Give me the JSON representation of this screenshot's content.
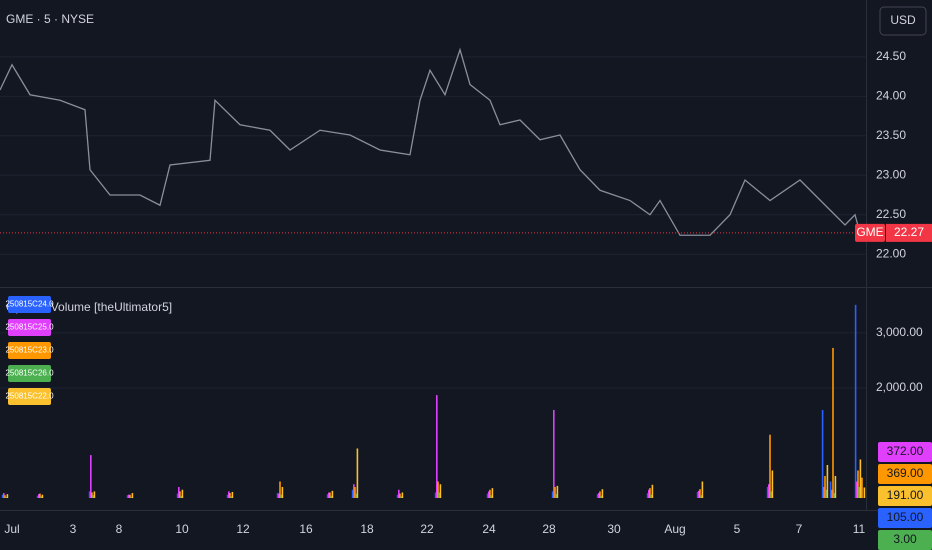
{
  "header": {
    "title": "GME · 5 · NYSE",
    "currency": "USD"
  },
  "chart_data": [
    {
      "type": "line",
      "symbol_tag": "GME",
      "color": "#8a8f9c",
      "last_color": "#f23645",
      "grid": true,
      "xlim": [
        0,
        86.6
      ],
      "x": [
        0,
        1.2,
        3,
        6,
        8.5,
        9,
        11,
        14,
        16,
        17,
        21,
        21.5,
        24,
        27,
        29,
        32,
        35,
        38,
        41,
        42,
        43,
        44.5,
        46,
        47,
        49,
        50,
        52,
        54,
        56,
        58,
        60,
        63,
        65,
        66,
        68,
        71,
        73,
        74.5,
        77,
        80,
        83,
        84.5,
        85.5,
        86
      ],
      "values": [
        24.08,
        24.4,
        24.02,
        23.95,
        23.83,
        23.07,
        22.75,
        22.75,
        22.62,
        23.13,
        23.19,
        23.95,
        23.64,
        23.57,
        23.32,
        23.57,
        23.51,
        23.32,
        23.26,
        23.95,
        24.33,
        24.02,
        24.59,
        24.15,
        23.95,
        23.64,
        23.7,
        23.45,
        23.51,
        23.07,
        22.81,
        22.68,
        22.5,
        22.68,
        22.24,
        22.24,
        22.5,
        22.94,
        22.68,
        22.94,
        22.56,
        22.37,
        22.5,
        22.27
      ],
      "ylim": [
        21.61,
        25.22
      ],
      "yticks": [
        {
          "value": 22,
          "label": "22.00"
        },
        {
          "value": 22.5,
          "label": "22.50"
        },
        {
          "value": 23,
          "label": "23.00"
        },
        {
          "value": 23.5,
          "label": "23.50"
        },
        {
          "value": 24,
          "label": "24.00"
        },
        {
          "value": 24.5,
          "label": "24.50"
        }
      ],
      "xticks": [
        {
          "value": 1.2,
          "label": "Jul"
        },
        {
          "value": 7.3,
          "label": "3"
        },
        {
          "value": 11.9,
          "label": "8"
        },
        {
          "value": 18.2,
          "label": "10"
        },
        {
          "value": 24.3,
          "label": "12"
        },
        {
          "value": 30.6,
          "label": "16"
        },
        {
          "value": 36.7,
          "label": "18"
        },
        {
          "value": 42.7,
          "label": "22"
        },
        {
          "value": 48.9,
          "label": "24"
        },
        {
          "value": 54.9,
          "label": "28"
        },
        {
          "value": 61.4,
          "label": "30"
        },
        {
          "value": 67.5,
          "label": "Aug"
        },
        {
          "value": 73.7,
          "label": "5"
        },
        {
          "value": 79.9,
          "label": "7"
        },
        {
          "value": 85.9,
          "label": "11"
        }
      ]
    },
    {
      "type": "bar",
      "title": "Options Volume [theUltimator5]",
      "grid": true,
      "xlim": [
        0,
        86.6
      ],
      "x": [
        0.5,
        4,
        9.2,
        13,
        18,
        23,
        28,
        33,
        35.5,
        40,
        43.8,
        49,
        55.5,
        60,
        65,
        70,
        77,
        82.5,
        83.3,
        85.8,
        86.2
      ],
      "ylim": [
        0,
        3780
      ],
      "yticks": [
        {
          "value": 2000,
          "label": "2,000.00"
        },
        {
          "value": 3000,
          "label": "3,000.00"
        }
      ],
      "series": [
        {
          "name": "250815C24.0",
          "color": "#2962ff",
          "values": [
            60,
            40,
            120,
            50,
            80,
            60,
            90,
            70,
            150,
            60,
            100,
            80,
            120,
            70,
            90,
            110,
            200,
            1600,
            300,
            3510,
            105
          ],
          "value_labels": [
            null,
            null,
            null,
            null,
            null,
            null,
            null,
            null,
            null,
            null,
            null,
            null,
            null,
            null,
            null,
            null,
            null,
            null,
            null,
            null,
            "105.00"
          ]
        },
        {
          "name": "250815C25.0",
          "color": "#e040fb",
          "values": [
            90,
            70,
            780,
            60,
            200,
            120,
            80,
            100,
            250,
            150,
            1870,
            120,
            1600,
            90,
            150,
            130,
            250,
            200,
            150,
            300,
            372
          ],
          "value_labels": [
            null,
            null,
            null,
            null,
            null,
            null,
            null,
            null,
            null,
            null,
            null,
            null,
            null,
            null,
            null,
            null,
            null,
            null,
            null,
            null,
            "372.00"
          ]
        },
        {
          "name": "250815C23.0",
          "color": "#ff9800",
          "values": [
            50,
            80,
            100,
            60,
            120,
            90,
            300,
            100,
            200,
            80,
            300,
            150,
            200,
            120,
            180,
            160,
            1150,
            400,
            2727,
            500,
            369
          ],
          "value_labels": [
            null,
            null,
            null,
            null,
            null,
            null,
            null,
            null,
            null,
            null,
            null,
            null,
            null,
            null,
            null,
            null,
            null,
            null,
            null,
            null,
            "369.00"
          ]
        },
        {
          "name": "250815C26.0",
          "color": "#4caf50",
          "values": [
            20,
            30,
            50,
            20,
            40,
            30,
            60,
            40,
            80,
            30,
            100,
            50,
            70,
            40,
            60,
            50,
            120,
            150,
            90,
            200,
            3
          ],
          "value_labels": [
            null,
            null,
            null,
            null,
            null,
            null,
            null,
            null,
            null,
            null,
            null,
            null,
            null,
            null,
            null,
            null,
            null,
            null,
            null,
            null,
            "3.00"
          ]
        },
        {
          "name": "250815C22.0",
          "color": "#fbc02d",
          "values": [
            70,
            60,
            120,
            90,
            150,
            110,
            200,
            130,
            900,
            100,
            250,
            180,
            220,
            160,
            240,
            300,
            500,
            600,
            400,
            700,
            191
          ],
          "value_labels": [
            null,
            null,
            null,
            null,
            null,
            null,
            null,
            null,
            null,
            null,
            null,
            null,
            null,
            null,
            null,
            null,
            null,
            null,
            null,
            null,
            "191.00"
          ]
        }
      ]
    }
  ]
}
